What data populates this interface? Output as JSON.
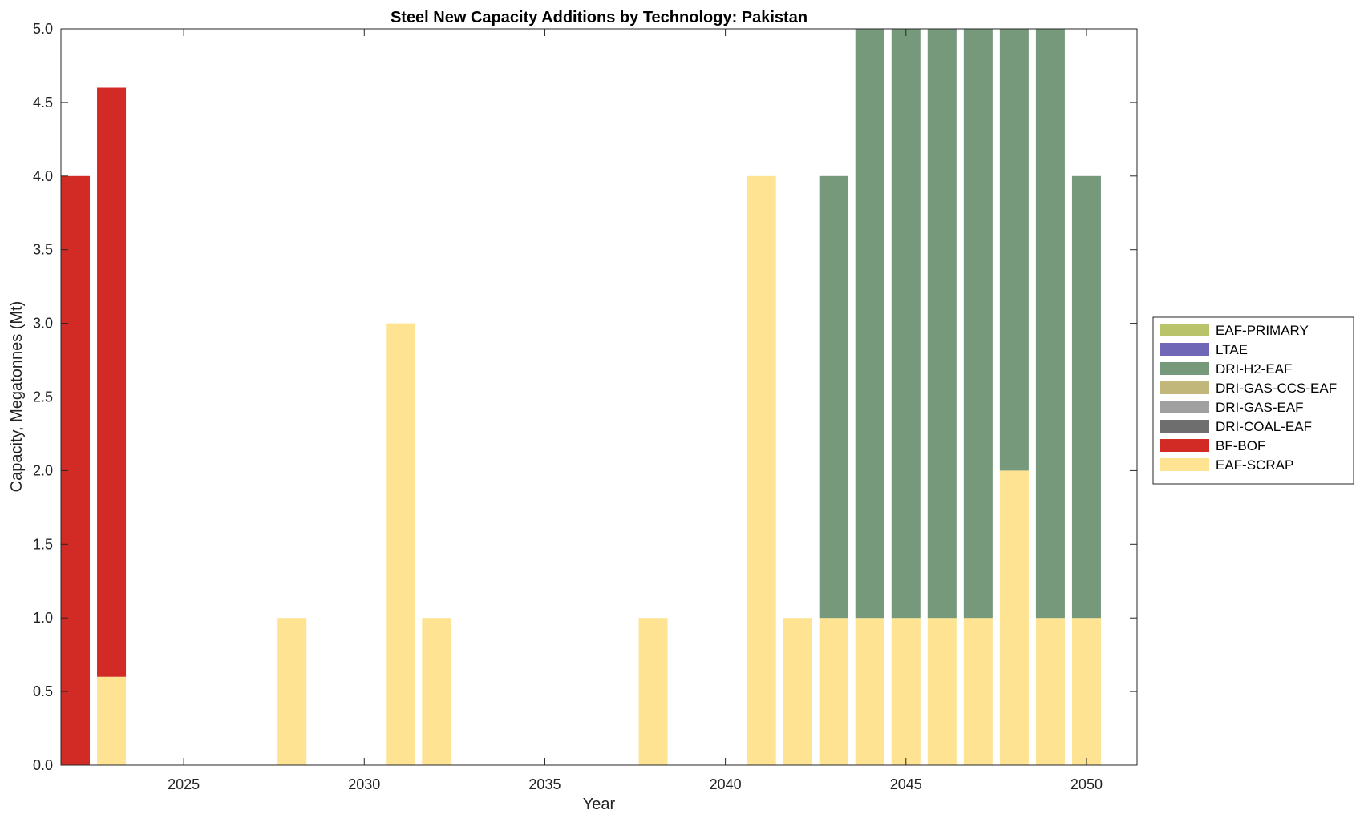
{
  "chart_data": {
    "type": "bar",
    "stacked": true,
    "title": "Steel New Capacity Additions by Technology: Pakistan",
    "xlabel": "Year",
    "ylabel": "Capacity, Megatonnes (Mt)",
    "xlim": [
      2021.6,
      2051.4
    ],
    "ylim": [
      0,
      5
    ],
    "x_ticks": [
      2025,
      2030,
      2035,
      2040,
      2045,
      2050
    ],
    "x_tick_labels": [
      "2025",
      "2030",
      "2035",
      "2040",
      "2045",
      "2050"
    ],
    "y_ticks": [
      0,
      0.5,
      1,
      1.5,
      2,
      2.5,
      3,
      3.5,
      4,
      4.5,
      5
    ],
    "y_tick_labels": [
      "0.0",
      "0.5",
      "1.0",
      "1.5",
      "2.0",
      "2.5",
      "3.0",
      "3.5",
      "4.0",
      "4.5",
      "5.0"
    ],
    "years": [
      2022,
      2023,
      2024,
      2025,
      2026,
      2027,
      2028,
      2029,
      2030,
      2031,
      2032,
      2033,
      2034,
      2035,
      2036,
      2037,
      2038,
      2039,
      2040,
      2041,
      2042,
      2043,
      2044,
      2045,
      2046,
      2047,
      2048,
      2049,
      2050
    ],
    "legend_position": "outside-right",
    "series": [
      {
        "name": "EAF-SCRAP",
        "color": "#fde392",
        "values": [
          0,
          0.6,
          0,
          0,
          0,
          0,
          1,
          0,
          0,
          3,
          1,
          0,
          0,
          0,
          0,
          0,
          1,
          0,
          0,
          4,
          1,
          1,
          1,
          1,
          1,
          1,
          2,
          1,
          1
        ]
      },
      {
        "name": "BF-BOF",
        "color": "#d22a24",
        "values": [
          4,
          4,
          0,
          0,
          0,
          0,
          0,
          0,
          0,
          0,
          0,
          0,
          0,
          0,
          0,
          0,
          0,
          0,
          0,
          0,
          0,
          0,
          0,
          0,
          0,
          0,
          0,
          0,
          0
        ]
      },
      {
        "name": "DRI-COAL-EAF",
        "color": "#6e6e6e",
        "values": [
          0,
          0,
          0,
          0,
          0,
          0,
          0,
          0,
          0,
          0,
          0,
          0,
          0,
          0,
          0,
          0,
          0,
          0,
          0,
          0,
          0,
          0,
          0,
          0,
          0,
          0,
          0,
          0,
          0
        ]
      },
      {
        "name": "DRI-GAS-EAF",
        "color": "#a0a0a0",
        "values": [
          0,
          0,
          0,
          0,
          0,
          0,
          0,
          0,
          0,
          0,
          0,
          0,
          0,
          0,
          0,
          0,
          0,
          0,
          0,
          0,
          0,
          0,
          0,
          0,
          0,
          0,
          0,
          0,
          0
        ]
      },
      {
        "name": "DRI-GAS-CCS-EAF",
        "color": "#c2b77a",
        "values": [
          0,
          0,
          0,
          0,
          0,
          0,
          0,
          0,
          0,
          0,
          0,
          0,
          0,
          0,
          0,
          0,
          0,
          0,
          0,
          0,
          0,
          0,
          0,
          0,
          0,
          0,
          0,
          0,
          0
        ]
      },
      {
        "name": "DRI-H2-EAF",
        "color": "#76997c",
        "values": [
          0,
          0,
          0,
          0,
          0,
          0,
          0,
          0,
          0,
          0,
          0,
          0,
          0,
          0,
          0,
          0,
          0,
          0,
          0,
          0,
          0,
          3,
          4,
          4,
          4,
          4,
          3,
          4,
          3
        ]
      },
      {
        "name": "LTAE",
        "color": "#7068b6",
        "values": [
          0,
          0,
          0,
          0,
          0,
          0,
          0,
          0,
          0,
          0,
          0,
          0,
          0,
          0,
          0,
          0,
          0,
          0,
          0,
          0,
          0,
          0,
          0,
          0,
          0,
          0,
          0,
          0,
          0
        ]
      },
      {
        "name": "EAF-PRIMARY",
        "color": "#b9c46a",
        "values": [
          0,
          0,
          0,
          0,
          0,
          0,
          0,
          0,
          0,
          0,
          0,
          0,
          0,
          0,
          0,
          0,
          0,
          0,
          0,
          0,
          0,
          0,
          0,
          0,
          0,
          0,
          0,
          0,
          0
        ]
      }
    ],
    "legend_order": [
      "EAF-PRIMARY",
      "LTAE",
      "DRI-H2-EAF",
      "DRI-GAS-CCS-EAF",
      "DRI-GAS-EAF",
      "DRI-COAL-EAF",
      "BF-BOF",
      "EAF-SCRAP"
    ]
  }
}
